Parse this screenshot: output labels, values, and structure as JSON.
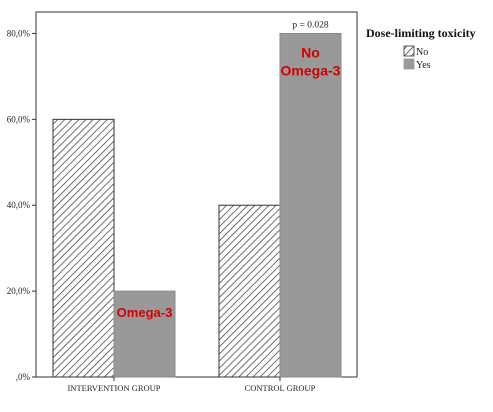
{
  "chart_data": {
    "type": "bar",
    "categories": [
      "INTERVENTION GROUP",
      "CONTROL GROUP"
    ],
    "series": [
      {
        "name": "No",
        "values": [
          60.0,
          40.0
        ],
        "pattern": "hatched"
      },
      {
        "name": "Yes",
        "values": [
          20.0,
          80.0
        ],
        "color": "#999999"
      }
    ],
    "ylim": [
      0,
      85
    ],
    "yticks": [
      0,
      20,
      40,
      60,
      80
    ],
    "ytick_labels": [
      ",0%",
      "20,0%",
      "40,0%",
      "60,0%",
      "80,0%"
    ],
    "legend": {
      "title": "Dose-limiting toxicity",
      "position": "top-right"
    },
    "annotations": {
      "p_value": "p = 0.028",
      "control_label_line1": "No",
      "control_label_line2": "Omega-3",
      "intervention_label": "Omega-3"
    },
    "grid": false
  }
}
